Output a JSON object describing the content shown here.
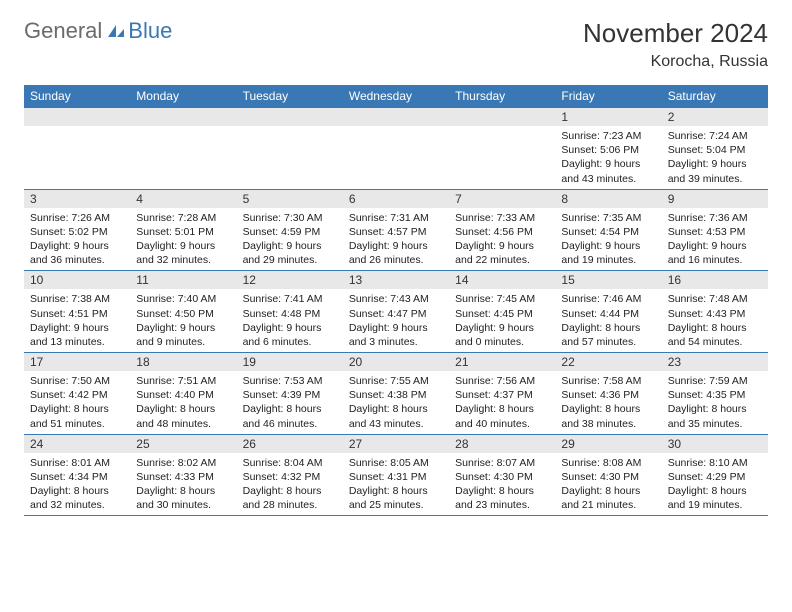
{
  "logo": {
    "general": "General",
    "blue": "Blue"
  },
  "title": "November 2024",
  "location": "Korocha, Russia",
  "header_color": "#3a78b5",
  "weekdays": [
    "Sunday",
    "Monday",
    "Tuesday",
    "Wednesday",
    "Thursday",
    "Friday",
    "Saturday"
  ],
  "weeks": [
    [
      {
        "n": "",
        "sr": "",
        "ss": "",
        "dl": ""
      },
      {
        "n": "",
        "sr": "",
        "ss": "",
        "dl": ""
      },
      {
        "n": "",
        "sr": "",
        "ss": "",
        "dl": ""
      },
      {
        "n": "",
        "sr": "",
        "ss": "",
        "dl": ""
      },
      {
        "n": "",
        "sr": "",
        "ss": "",
        "dl": ""
      },
      {
        "n": "1",
        "sr": "Sunrise: 7:23 AM",
        "ss": "Sunset: 5:06 PM",
        "dl": "Daylight: 9 hours and 43 minutes."
      },
      {
        "n": "2",
        "sr": "Sunrise: 7:24 AM",
        "ss": "Sunset: 5:04 PM",
        "dl": "Daylight: 9 hours and 39 minutes."
      }
    ],
    [
      {
        "n": "3",
        "sr": "Sunrise: 7:26 AM",
        "ss": "Sunset: 5:02 PM",
        "dl": "Daylight: 9 hours and 36 minutes."
      },
      {
        "n": "4",
        "sr": "Sunrise: 7:28 AM",
        "ss": "Sunset: 5:01 PM",
        "dl": "Daylight: 9 hours and 32 minutes."
      },
      {
        "n": "5",
        "sr": "Sunrise: 7:30 AM",
        "ss": "Sunset: 4:59 PM",
        "dl": "Daylight: 9 hours and 29 minutes."
      },
      {
        "n": "6",
        "sr": "Sunrise: 7:31 AM",
        "ss": "Sunset: 4:57 PM",
        "dl": "Daylight: 9 hours and 26 minutes."
      },
      {
        "n": "7",
        "sr": "Sunrise: 7:33 AM",
        "ss": "Sunset: 4:56 PM",
        "dl": "Daylight: 9 hours and 22 minutes."
      },
      {
        "n": "8",
        "sr": "Sunrise: 7:35 AM",
        "ss": "Sunset: 4:54 PM",
        "dl": "Daylight: 9 hours and 19 minutes."
      },
      {
        "n": "9",
        "sr": "Sunrise: 7:36 AM",
        "ss": "Sunset: 4:53 PM",
        "dl": "Daylight: 9 hours and 16 minutes."
      }
    ],
    [
      {
        "n": "10",
        "sr": "Sunrise: 7:38 AM",
        "ss": "Sunset: 4:51 PM",
        "dl": "Daylight: 9 hours and 13 minutes."
      },
      {
        "n": "11",
        "sr": "Sunrise: 7:40 AM",
        "ss": "Sunset: 4:50 PM",
        "dl": "Daylight: 9 hours and 9 minutes."
      },
      {
        "n": "12",
        "sr": "Sunrise: 7:41 AM",
        "ss": "Sunset: 4:48 PM",
        "dl": "Daylight: 9 hours and 6 minutes."
      },
      {
        "n": "13",
        "sr": "Sunrise: 7:43 AM",
        "ss": "Sunset: 4:47 PM",
        "dl": "Daylight: 9 hours and 3 minutes."
      },
      {
        "n": "14",
        "sr": "Sunrise: 7:45 AM",
        "ss": "Sunset: 4:45 PM",
        "dl": "Daylight: 9 hours and 0 minutes."
      },
      {
        "n": "15",
        "sr": "Sunrise: 7:46 AM",
        "ss": "Sunset: 4:44 PM",
        "dl": "Daylight: 8 hours and 57 minutes."
      },
      {
        "n": "16",
        "sr": "Sunrise: 7:48 AM",
        "ss": "Sunset: 4:43 PM",
        "dl": "Daylight: 8 hours and 54 minutes."
      }
    ],
    [
      {
        "n": "17",
        "sr": "Sunrise: 7:50 AM",
        "ss": "Sunset: 4:42 PM",
        "dl": "Daylight: 8 hours and 51 minutes."
      },
      {
        "n": "18",
        "sr": "Sunrise: 7:51 AM",
        "ss": "Sunset: 4:40 PM",
        "dl": "Daylight: 8 hours and 48 minutes."
      },
      {
        "n": "19",
        "sr": "Sunrise: 7:53 AM",
        "ss": "Sunset: 4:39 PM",
        "dl": "Daylight: 8 hours and 46 minutes."
      },
      {
        "n": "20",
        "sr": "Sunrise: 7:55 AM",
        "ss": "Sunset: 4:38 PM",
        "dl": "Daylight: 8 hours and 43 minutes."
      },
      {
        "n": "21",
        "sr": "Sunrise: 7:56 AM",
        "ss": "Sunset: 4:37 PM",
        "dl": "Daylight: 8 hours and 40 minutes."
      },
      {
        "n": "22",
        "sr": "Sunrise: 7:58 AM",
        "ss": "Sunset: 4:36 PM",
        "dl": "Daylight: 8 hours and 38 minutes."
      },
      {
        "n": "23",
        "sr": "Sunrise: 7:59 AM",
        "ss": "Sunset: 4:35 PM",
        "dl": "Daylight: 8 hours and 35 minutes."
      }
    ],
    [
      {
        "n": "24",
        "sr": "Sunrise: 8:01 AM",
        "ss": "Sunset: 4:34 PM",
        "dl": "Daylight: 8 hours and 32 minutes."
      },
      {
        "n": "25",
        "sr": "Sunrise: 8:02 AM",
        "ss": "Sunset: 4:33 PM",
        "dl": "Daylight: 8 hours and 30 minutes."
      },
      {
        "n": "26",
        "sr": "Sunrise: 8:04 AM",
        "ss": "Sunset: 4:32 PM",
        "dl": "Daylight: 8 hours and 28 minutes."
      },
      {
        "n": "27",
        "sr": "Sunrise: 8:05 AM",
        "ss": "Sunset: 4:31 PM",
        "dl": "Daylight: 8 hours and 25 minutes."
      },
      {
        "n": "28",
        "sr": "Sunrise: 8:07 AM",
        "ss": "Sunset: 4:30 PM",
        "dl": "Daylight: 8 hours and 23 minutes."
      },
      {
        "n": "29",
        "sr": "Sunrise: 8:08 AM",
        "ss": "Sunset: 4:30 PM",
        "dl": "Daylight: 8 hours and 21 minutes."
      },
      {
        "n": "30",
        "sr": "Sunrise: 8:10 AM",
        "ss": "Sunset: 4:29 PM",
        "dl": "Daylight: 8 hours and 19 minutes."
      }
    ]
  ]
}
